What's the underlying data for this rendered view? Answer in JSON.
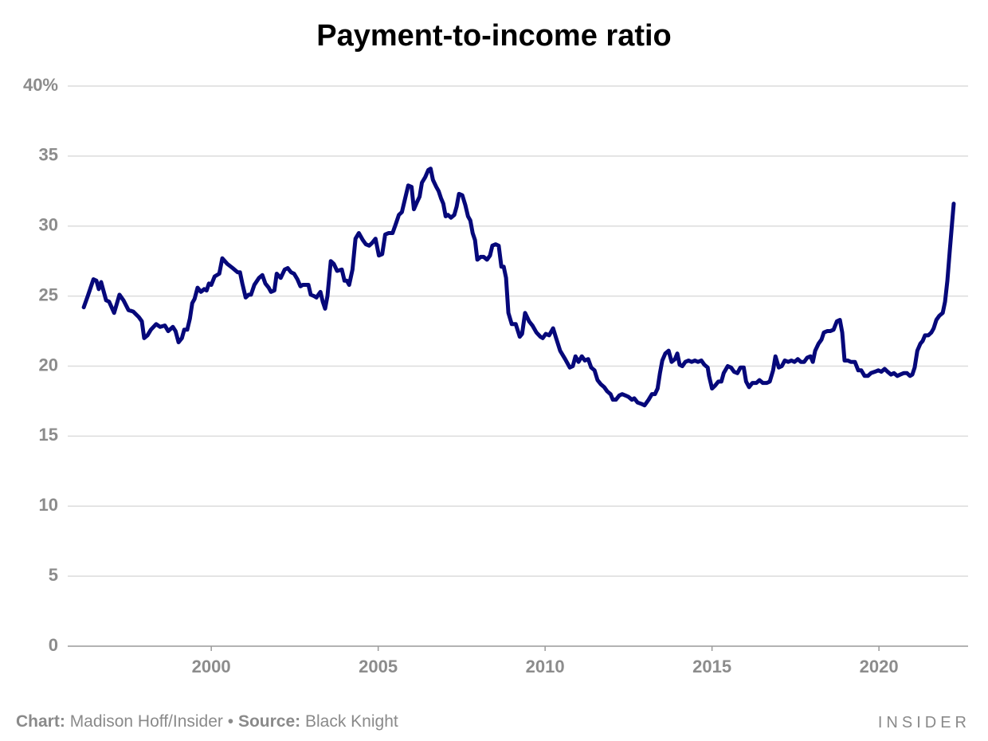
{
  "chart_data": {
    "type": "line",
    "title": "Payment-to-income ratio",
    "xlim": [
      1995.7,
      2022.67
    ],
    "xticks": [
      2000,
      2005,
      2010,
      2015,
      2020
    ],
    "ylim": [
      0,
      40
    ],
    "yticks": [
      0,
      5,
      10,
      15,
      20,
      25,
      30,
      35,
      {
        "value": 40,
        "label": "40%"
      }
    ],
    "grid": true,
    "series": [
      {
        "color": "#06087a",
        "x": [
          1996.18,
          1996.3,
          1996.47,
          1996.56,
          1996.63,
          1996.7,
          1996.85,
          1996.94,
          1997.09,
          1997.25,
          1997.37,
          1997.52,
          1997.66,
          1997.83,
          1997.92,
          1997.99,
          1998.09,
          1998.19,
          1998.35,
          1998.47,
          1998.61,
          1998.71,
          1998.85,
          1998.93,
          1999.02,
          1999.12,
          1999.19,
          1999.28,
          1999.36,
          1999.43,
          1999.5,
          1999.59,
          1999.69,
          1999.79,
          1999.86,
          1999.93,
          2000.0,
          2000.1,
          2000.24,
          2000.33,
          2000.48,
          2000.64,
          2000.79,
          2000.86,
          2000.93,
          2001.03,
          2001.12,
          2001.19,
          2001.29,
          2001.43,
          2001.53,
          2001.62,
          2001.72,
          2001.79,
          2001.89,
          2001.96,
          2002.08,
          2002.2,
          2002.29,
          2002.39,
          2002.48,
          2002.58,
          2002.67,
          2002.74,
          2002.91,
          2002.98,
          2003.08,
          2003.15,
          2003.27,
          2003.34,
          2003.41,
          2003.48,
          2003.58,
          2003.67,
          2003.77,
          2003.91,
          2003.99,
          2004.06,
          2004.13,
          2004.23,
          2004.32,
          2004.42,
          2004.54,
          2004.63,
          2004.73,
          2004.82,
          2004.92,
          2005.02,
          2005.12,
          2005.21,
          2005.31,
          2005.43,
          2005.52,
          2005.62,
          2005.71,
          2005.81,
          2005.9,
          2006.0,
          2006.07,
          2006.16,
          2006.24,
          2006.31,
          2006.41,
          2006.5,
          2006.57,
          2006.64,
          2006.74,
          2006.81,
          2006.88,
          2006.95,
          2007.02,
          2007.09,
          2007.18,
          2007.28,
          2007.35,
          2007.42,
          2007.52,
          2007.61,
          2007.69,
          2007.76,
          2007.83,
          2007.9,
          2007.97,
          2008.07,
          2008.16,
          2008.26,
          2008.35,
          2008.42,
          2008.52,
          2008.61,
          2008.69,
          2008.76,
          2008.83,
          2008.9,
          2009.0,
          2009.12,
          2009.24,
          2009.31,
          2009.4,
          2009.52,
          2009.62,
          2009.74,
          2009.86,
          2009.93,
          2010.02,
          2010.12,
          2010.24,
          2010.33,
          2010.45,
          2010.6,
          2010.74,
          2010.83,
          2010.91,
          2011.0,
          2011.1,
          2011.19,
          2011.29,
          2011.38,
          2011.48,
          2011.57,
          2011.67,
          2011.77,
          2011.86,
          2011.96,
          2012.03,
          2012.12,
          2012.22,
          2012.31,
          2012.41,
          2012.5,
          2012.6,
          2012.67,
          2012.77,
          2012.89,
          2012.98,
          2013.1,
          2013.2,
          2013.29,
          2013.37,
          2013.44,
          2013.51,
          2013.6,
          2013.7,
          2013.79,
          2013.89,
          2013.96,
          2014.03,
          2014.11,
          2014.2,
          2014.3,
          2014.39,
          2014.49,
          2014.58,
          2014.68,
          2014.77,
          2014.87,
          2014.91,
          2015.0,
          2015.09,
          2015.19,
          2015.28,
          2015.35,
          2015.47,
          2015.57,
          2015.66,
          2015.76,
          2015.85,
          2015.95,
          2016.02,
          2016.11,
          2016.21,
          2016.33,
          2016.42,
          2016.52,
          2016.64,
          2016.73,
          2016.83,
          2016.9,
          2017.0,
          2017.09,
          2017.18,
          2017.28,
          2017.38,
          2017.47,
          2017.57,
          2017.66,
          2017.76,
          2017.85,
          2017.95,
          2018.02,
          2018.09,
          2018.19,
          2018.28,
          2018.35,
          2018.45,
          2018.54,
          2018.64,
          2018.74,
          2018.83,
          2018.9,
          2018.97,
          2019.07,
          2019.16,
          2019.28,
          2019.38,
          2019.47,
          2019.57,
          2019.67,
          2019.76,
          2019.88,
          2019.98,
          2020.07,
          2020.17,
          2020.26,
          2020.36,
          2020.45,
          2020.55,
          2020.64,
          2020.74,
          2020.84,
          2020.93,
          2021.0,
          2021.07,
          2021.15,
          2021.24,
          2021.31,
          2021.38,
          2021.48,
          2021.57,
          2021.64,
          2021.72,
          2021.81,
          2021.91,
          2021.98,
          2022.05,
          2022.12,
          2022.19,
          2022.24
        ],
        "values": [
          24.2,
          25.0,
          26.2,
          26.1,
          25.5,
          26.0,
          24.7,
          24.6,
          23.8,
          25.1,
          24.7,
          24.0,
          23.9,
          23.5,
          23.2,
          22.0,
          22.2,
          22.6,
          23.0,
          22.8,
          22.9,
          22.5,
          22.8,
          22.5,
          21.7,
          22.0,
          22.6,
          22.6,
          23.4,
          24.5,
          24.8,
          25.6,
          25.3,
          25.5,
          25.4,
          25.9,
          25.8,
          26.4,
          26.6,
          27.7,
          27.3,
          27.0,
          26.7,
          26.7,
          25.9,
          24.9,
          25.1,
          25.1,
          25.8,
          26.3,
          26.5,
          25.9,
          25.6,
          25.3,
          25.4,
          26.6,
          26.3,
          26.9,
          27.0,
          26.7,
          26.6,
          26.2,
          25.7,
          25.8,
          25.8,
          25.1,
          25.0,
          24.9,
          25.3,
          24.6,
          24.1,
          25.0,
          27.5,
          27.3,
          26.8,
          26.9,
          26.1,
          26.1,
          25.8,
          26.9,
          29.1,
          29.5,
          29.0,
          28.7,
          28.6,
          28.8,
          29.1,
          27.9,
          28.0,
          29.4,
          29.5,
          29.5,
          30.1,
          30.8,
          31.0,
          32.0,
          32.9,
          32.8,
          31.2,
          31.7,
          32.1,
          33.1,
          33.5,
          34.0,
          34.1,
          33.3,
          32.8,
          32.5,
          32.0,
          31.6,
          30.7,
          30.8,
          30.6,
          30.8,
          31.4,
          32.3,
          32.2,
          31.5,
          30.7,
          30.4,
          29.5,
          29.0,
          27.6,
          27.8,
          27.8,
          27.6,
          27.9,
          28.6,
          28.7,
          28.6,
          27.1,
          27.1,
          26.3,
          23.8,
          23.0,
          23.0,
          22.1,
          22.3,
          23.8,
          23.2,
          22.9,
          22.4,
          22.1,
          22.0,
          22.3,
          22.2,
          22.7,
          22.0,
          21.1,
          20.5,
          19.9,
          20.0,
          20.7,
          20.3,
          20.7,
          20.4,
          20.5,
          19.9,
          19.7,
          19.0,
          18.7,
          18.5,
          18.2,
          18.0,
          17.6,
          17.6,
          17.9,
          18.0,
          17.9,
          17.8,
          17.6,
          17.7,
          17.4,
          17.3,
          17.2,
          17.6,
          18.0,
          18.0,
          18.4,
          19.5,
          20.4,
          20.9,
          21.1,
          20.3,
          20.5,
          20.9,
          20.1,
          20.0,
          20.3,
          20.4,
          20.3,
          20.4,
          20.3,
          20.4,
          20.1,
          19.9,
          19.3,
          18.4,
          18.6,
          18.9,
          18.9,
          19.5,
          20.0,
          19.9,
          19.6,
          19.5,
          19.9,
          19.9,
          18.9,
          18.5,
          18.8,
          18.8,
          19.0,
          18.8,
          18.8,
          18.9,
          19.7,
          20.7,
          19.9,
          20.0,
          20.4,
          20.3,
          20.4,
          20.3,
          20.5,
          20.3,
          20.3,
          20.6,
          20.7,
          20.3,
          21.1,
          21.6,
          21.9,
          22.4,
          22.5,
          22.5,
          22.6,
          23.2,
          23.3,
          22.4,
          20.4,
          20.4,
          20.3,
          20.3,
          19.7,
          19.7,
          19.3,
          19.3,
          19.5,
          19.6,
          19.7,
          19.6,
          19.8,
          19.6,
          19.4,
          19.5,
          19.3,
          19.4,
          19.5,
          19.5,
          19.3,
          19.4,
          19.9,
          21.1,
          21.6,
          21.8,
          22.2,
          22.2,
          22.4,
          22.7,
          23.3,
          23.6,
          23.8,
          24.6,
          26.1,
          28.2,
          30.2,
          31.6
        ]
      }
    ],
    "footer": {
      "chart_label": "Chart:",
      "chart_credit": "Madison Hoff/Insider",
      "separator": "•",
      "source_label": "Source:",
      "source": "Black Knight",
      "brand": "INSIDER"
    }
  }
}
